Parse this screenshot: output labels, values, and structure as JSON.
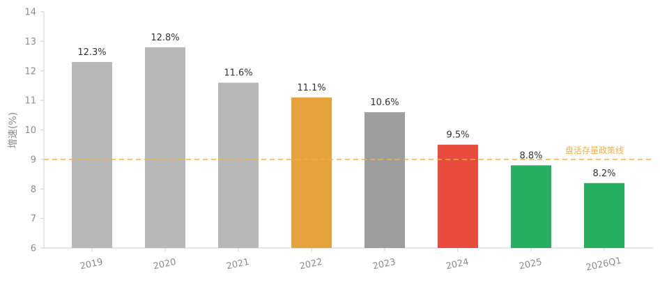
{
  "chart_data": {
    "type": "bar",
    "title": "",
    "xlabel": "",
    "ylabel": "增速(%)",
    "ylim": [
      6,
      14
    ],
    "yticks": [
      6,
      7,
      8,
      9,
      10,
      11,
      12,
      13,
      14
    ],
    "categories": [
      "2019",
      "2020",
      "2021",
      "2022",
      "2023",
      "2024",
      "2025",
      "2026Q1"
    ],
    "values": [
      12.3,
      12.8,
      11.6,
      11.1,
      10.6,
      9.5,
      8.8,
      8.2
    ],
    "data_labels": [
      "12.3%",
      "12.8%",
      "11.6%",
      "11.1%",
      "10.6%",
      "9.5%",
      "8.8%",
      "8.2%"
    ],
    "bar_colors": [
      "#b8b8b8",
      "#b8b8b8",
      "#b8b8b8",
      "#e6a23c",
      "#9e9e9e",
      "#e74c3c",
      "#27ae60",
      "#27ae60"
    ],
    "reference_line": {
      "value": 9,
      "label": "盘活存量政策线",
      "color": "#f0b048",
      "style": "dashed"
    },
    "grid": false,
    "legend": "none"
  }
}
